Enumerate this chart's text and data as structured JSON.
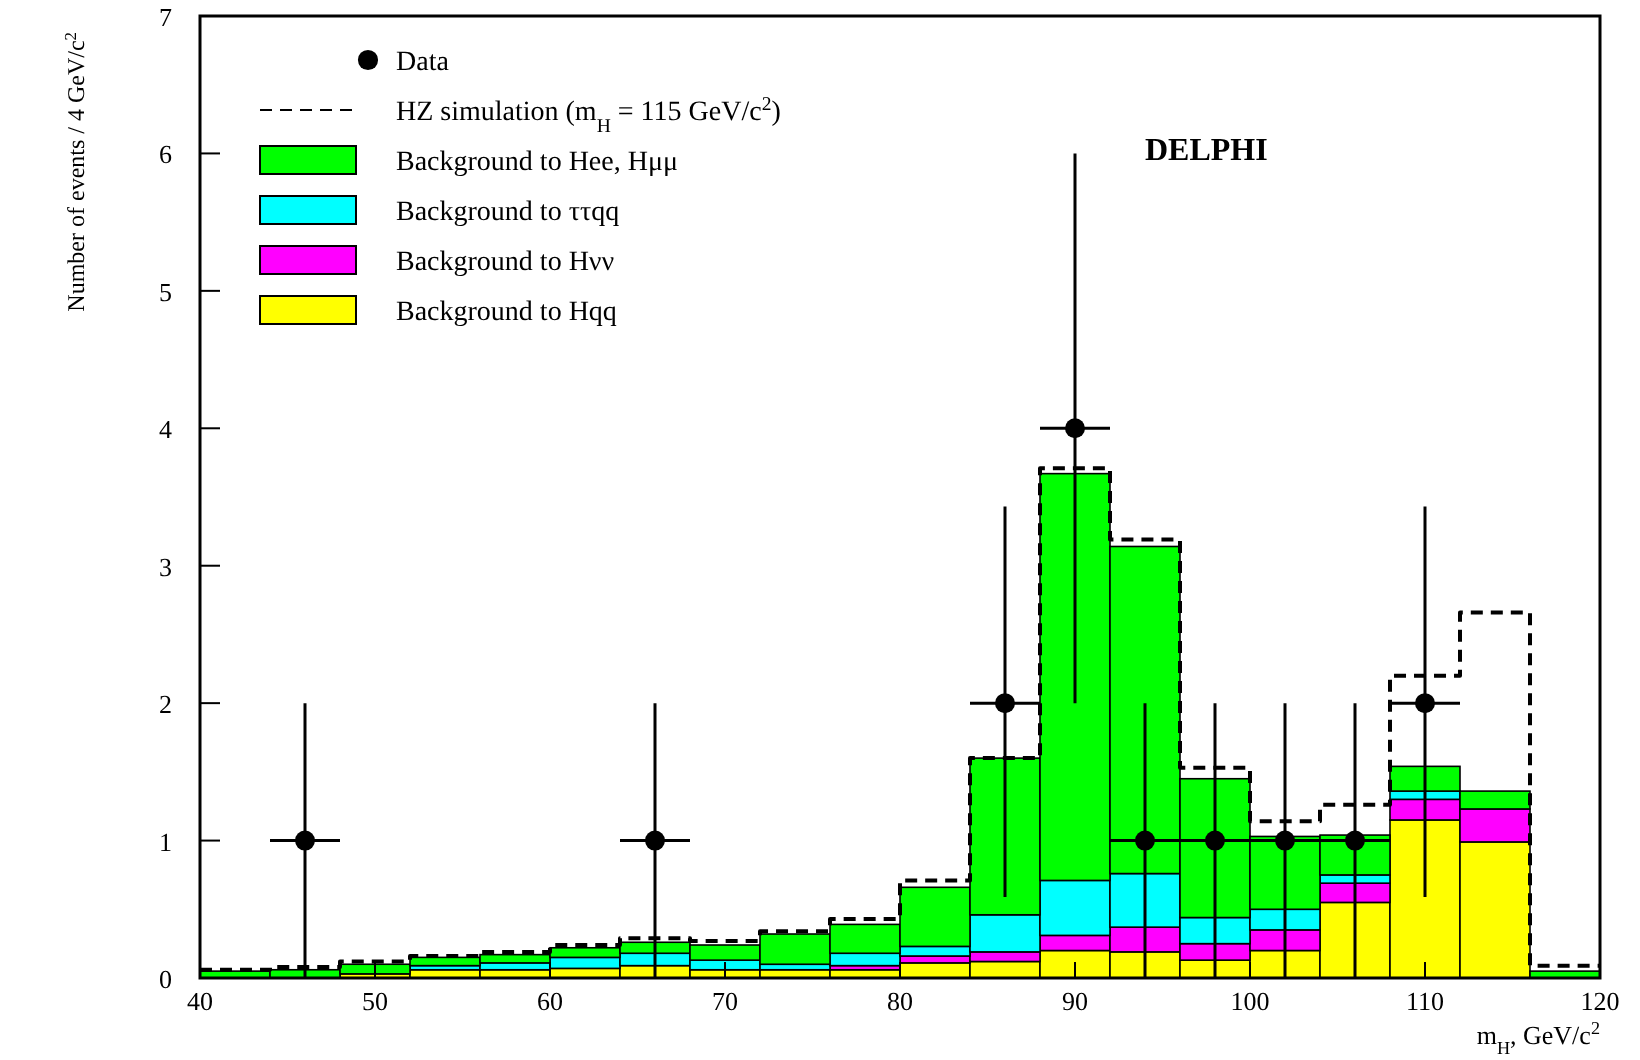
{
  "chart_data": {
    "type": "bar",
    "stacked": true,
    "ylabel": "Number of events / 4 GeV/c$^{2}$",
    "xlabel": "m$_{H}$, GeV/c$^{2}$",
    "annotations": [
      "DELPHI"
    ],
    "x": [
      42,
      46,
      50,
      54,
      58,
      62,
      66,
      70,
      74,
      78,
      82,
      86,
      90,
      94,
      98,
      102,
      106,
      110,
      114,
      118
    ],
    "xlim": [
      40,
      120
    ],
    "xticks": [
      40,
      50,
      60,
      70,
      80,
      90,
      100,
      110,
      120
    ],
    "ylim": [
      0,
      7
    ],
    "yticks": [
      0,
      1,
      2,
      3,
      4,
      5,
      6,
      7
    ],
    "legend": "top left",
    "grid": false,
    "series": [
      {
        "name": "Data",
        "type": "scatter",
        "marker": "circle",
        "color": "#000000",
        "x": [
          46,
          66,
          86,
          90,
          94,
          98,
          102,
          106,
          110
        ],
        "values": [
          1,
          1,
          2,
          4,
          1,
          1,
          1,
          1,
          2
        ],
        "errors": [
          1,
          1,
          [
            1.41,
            1.43
          ],
          2,
          1,
          1,
          1,
          1,
          [
            1.41,
            1.43
          ]
        ],
        "xerrors": [
          2,
          2,
          2,
          2,
          2,
          2,
          2,
          2,
          2
        ]
      },
      {
        "name": "HZ simulation (m$_{H}$ = 115 GeV/c$^{2}$)",
        "type": "step",
        "line_style": "dashed",
        "color": "#000000",
        "x": [
          40,
          44,
          48,
          52,
          56,
          60,
          64,
          68,
          72,
          76,
          80,
          84,
          88,
          92,
          96,
          100,
          104,
          108,
          112,
          116,
          120
        ],
        "values": [
          0.06,
          0.08,
          0.12,
          0.16,
          0.19,
          0.24,
          0.29,
          0.27,
          0.34,
          0.43,
          0.71,
          1.6,
          3.71,
          3.19,
          1.53,
          1.14,
          1.26,
          2.2,
          2.66,
          0.09,
          0.09
        ]
      },
      {
        "name": "Background to Hqq",
        "color": "#ffff00",
        "values": [
          null,
          null,
          0.03,
          0.06,
          0.06,
          0.07,
          0.09,
          0.06,
          0.06,
          0.06,
          0.11,
          0.12,
          0.2,
          0.19,
          0.13,
          0.2,
          0.55,
          1.15,
          0.99,
          0
        ]
      },
      {
        "name": "Background to Hνν",
        "color": "#ff00ff",
        "values": [
          0,
          0,
          0,
          0,
          0,
          0,
          0,
          0,
          0,
          0.03,
          0.05,
          0.07,
          0.11,
          0.18,
          0.12,
          0.15,
          0.14,
          0.15,
          0.24,
          0
        ]
      },
      {
        "name": "Background to ττqq",
        "color": "#00ffff",
        "values": [
          0,
          0,
          0,
          0.03,
          0.05,
          0.08,
          0.09,
          0.07,
          0.04,
          0.09,
          0.07,
          0.27,
          0.4,
          0.39,
          0.19,
          0.15,
          0.06,
          0.06,
          null,
          0
        ]
      },
      {
        "name": "Background to Hee, Hμμ",
        "color": "#00ff00",
        "values": [
          0.05,
          0.06,
          0.07,
          0.06,
          0.06,
          0.07,
          0.08,
          0.11,
          0.22,
          0.21,
          0.43,
          1.14,
          2.96,
          2.38,
          1.01,
          0.53,
          0.29,
          0.18,
          0.13,
          0.05
        ]
      }
    ]
  }
}
